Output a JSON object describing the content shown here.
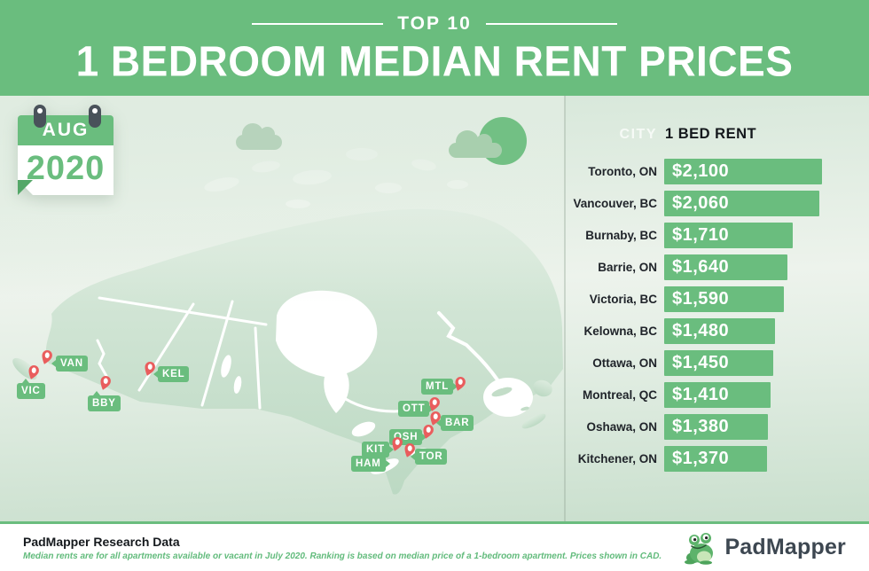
{
  "header": {
    "eyebrow": "TOP 10",
    "title": "1 BEDROOM MEDIAN RENT PRICES"
  },
  "calendar": {
    "month": "AUG",
    "year": "2020"
  },
  "map": {
    "markers": [
      {
        "code": "VAN"
      },
      {
        "code": "VIC"
      },
      {
        "code": "BBY"
      },
      {
        "code": "KEL"
      },
      {
        "code": "MTL"
      },
      {
        "code": "OTT"
      },
      {
        "code": "BAR"
      },
      {
        "code": "OSH"
      },
      {
        "code": "KIT"
      },
      {
        "code": "TOR"
      },
      {
        "code": "HAM"
      }
    ]
  },
  "table": {
    "columns": {
      "city": "CITY",
      "rent": "1 BED RENT"
    },
    "rows": [
      {
        "city": "Toronto, ON",
        "rent": "$2,100",
        "value": 2100
      },
      {
        "city": "Vancouver, BC",
        "rent": "$2,060",
        "value": 2060
      },
      {
        "city": "Burnaby, BC",
        "rent": "$1,710",
        "value": 1710
      },
      {
        "city": "Barrie, ON",
        "rent": "$1,640",
        "value": 1640
      },
      {
        "city": "Victoria, BC",
        "rent": "$1,590",
        "value": 1590
      },
      {
        "city": "Kelowna, BC",
        "rent": "$1,480",
        "value": 1480
      },
      {
        "city": "Ottawa, ON",
        "rent": "$1,450",
        "value": 1450
      },
      {
        "city": "Montreal, QC",
        "rent": "$1,410",
        "value": 1410
      },
      {
        "city": "Oshawa, ON",
        "rent": "$1,380",
        "value": 1380
      },
      {
        "city": "Kitchener, ON",
        "rent": "$1,370",
        "value": 1370
      }
    ]
  },
  "chart_data": {
    "type": "bar",
    "orientation": "horizontal",
    "title": "TOP 10 1 BEDROOM MEDIAN RENT PRICES",
    "period": "AUG 2020",
    "categories": [
      "Toronto, ON",
      "Vancouver, BC",
      "Burnaby, BC",
      "Barrie, ON",
      "Victoria, BC",
      "Kelowna, BC",
      "Ottawa, ON",
      "Montreal, QC",
      "Oshawa, ON",
      "Kitchener, ON"
    ],
    "values": [
      2100,
      2060,
      1710,
      1640,
      1590,
      1480,
      1450,
      1410,
      1380,
      1370
    ],
    "value_labels": [
      "$2,100",
      "$2,060",
      "$1,710",
      "$1,640",
      "$1,590",
      "$1,480",
      "$1,450",
      "$1,410",
      "$1,380",
      "$1,370"
    ],
    "xlabel": "1 BED RENT",
    "ylabel": "CITY",
    "xlim": [
      0,
      2100
    ],
    "currency": "CAD",
    "bar_color": "#6abd7e"
  },
  "footer": {
    "heading": "PadMapper Research Data",
    "note": "Median rents are for all apartments available or vacant in July 2020. Ranking is based on median price of a 1-bedroom apartment. Prices shown in CAD.",
    "brand": "PadMapper"
  },
  "colors": {
    "green": "#6abd7e",
    "pin_red": "#e95d5d",
    "land": "#cbe2cf"
  }
}
